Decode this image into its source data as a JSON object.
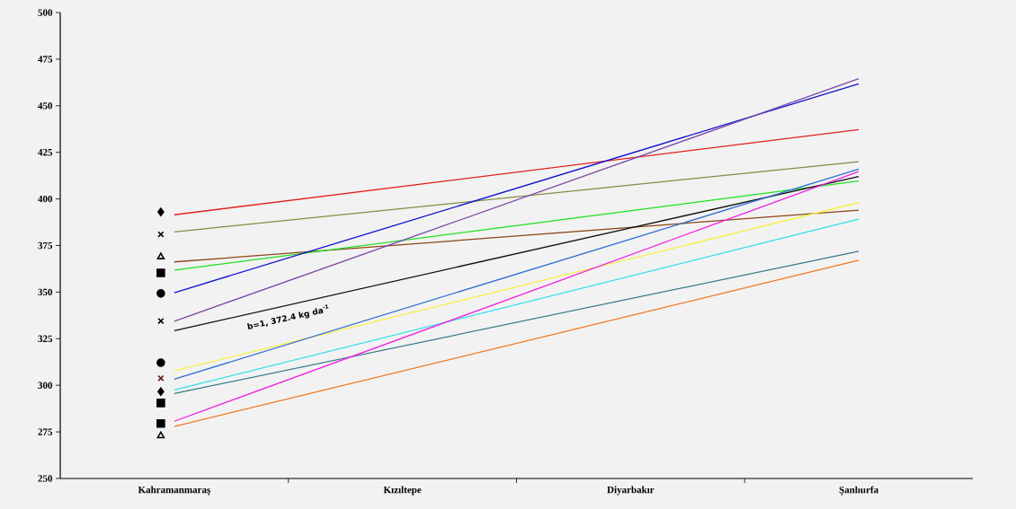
{
  "chart_data": {
    "type": "line",
    "categories": [
      "Kahramanmaraş",
      "Kızıltepe",
      "Diyarbakır",
      "Şanlıurfa"
    ],
    "ylim": [
      250,
      500
    ],
    "yticks": [
      250,
      275,
      300,
      325,
      350,
      375,
      400,
      425,
      450,
      475,
      500
    ],
    "grid": false,
    "annotations": [
      "b=1, 372.4 kg da$^{-1}$"
    ],
    "series": [
      {
        "color": "#e02020",
        "values": [
          391.5,
          null,
          null,
          437.2
        ]
      },
      {
        "color": "#7f8f40",
        "values": [
          382.3,
          null,
          null,
          420
        ]
      },
      {
        "color": "#8b4513",
        "values": [
          366.2,
          null,
          null,
          394
        ]
      },
      {
        "color": "#20e020",
        "values": [
          361.8,
          null,
          null,
          409.6
        ]
      },
      {
        "color": "#1010d0",
        "values": [
          349.7,
          null,
          null,
          461.8
        ]
      },
      {
        "color": "#7a48a8",
        "values": [
          334.4,
          null,
          null,
          464.5
        ]
      },
      {
        "color": "#101010",
        "values": [
          329.3,
          null,
          null,
          412
        ]
      },
      {
        "color": "#f8f040",
        "values": [
          307.7,
          null,
          null,
          398
        ]
      },
      {
        "color": "#3070d0",
        "values": [
          303.3,
          null,
          null,
          416
        ]
      },
      {
        "color": "#30e0e8",
        "values": [
          297.5,
          null,
          null,
          389.2
        ]
      },
      {
        "color": "#3a7a8a",
        "values": [
          295.6,
          null,
          null,
          371.9
        ]
      },
      {
        "color": "#f020e0",
        "values": [
          280.7,
          null,
          null,
          414.7
        ]
      },
      {
        "color": "#f07820",
        "values": [
          277.9,
          null,
          null,
          367.1
        ]
      },
      {
        "type": "scatter",
        "marker": "diamond",
        "color": "#000000",
        "values": [
          393,
          null,
          null,
          null
        ]
      },
      {
        "type": "scatter",
        "marker": "cross",
        "color": "#000000",
        "values": [
          381,
          null,
          null,
          null
        ]
      },
      {
        "type": "scatter",
        "marker": "triangle",
        "color": "#000000",
        "values": [
          368.9,
          null,
          null,
          null
        ]
      },
      {
        "type": "scatter",
        "marker": "square",
        "color": "#000000",
        "values": [
          360.3,
          null,
          null,
          null
        ]
      },
      {
        "type": "scatter",
        "marker": "circle",
        "color": "#000000",
        "values": [
          349.3,
          null,
          null,
          null
        ]
      },
      {
        "type": "scatter",
        "marker": "cross",
        "color": "#000000",
        "values": [
          334.5,
          null,
          null,
          null
        ]
      },
      {
        "type": "scatter",
        "marker": "circle",
        "color": "#000000",
        "values": [
          312.1,
          null,
          null,
          null
        ]
      },
      {
        "type": "scatter",
        "marker": "cross",
        "color": "#5a1a1a",
        "values": [
          303.8,
          null,
          null,
          null
        ]
      },
      {
        "type": "scatter",
        "marker": "diamond",
        "color": "#000000",
        "values": [
          296.6,
          null,
          null,
          null
        ]
      },
      {
        "type": "scatter",
        "marker": "square",
        "color": "#000000",
        "values": [
          290.5,
          null,
          null,
          null
        ]
      },
      {
        "type": "scatter",
        "marker": "square",
        "color": "#000000",
        "values": [
          279.5,
          null,
          null,
          null
        ]
      },
      {
        "type": "scatter",
        "marker": "triangle",
        "color": "#000000",
        "values": [
          272.9,
          null,
          null,
          null
        ]
      }
    ]
  }
}
